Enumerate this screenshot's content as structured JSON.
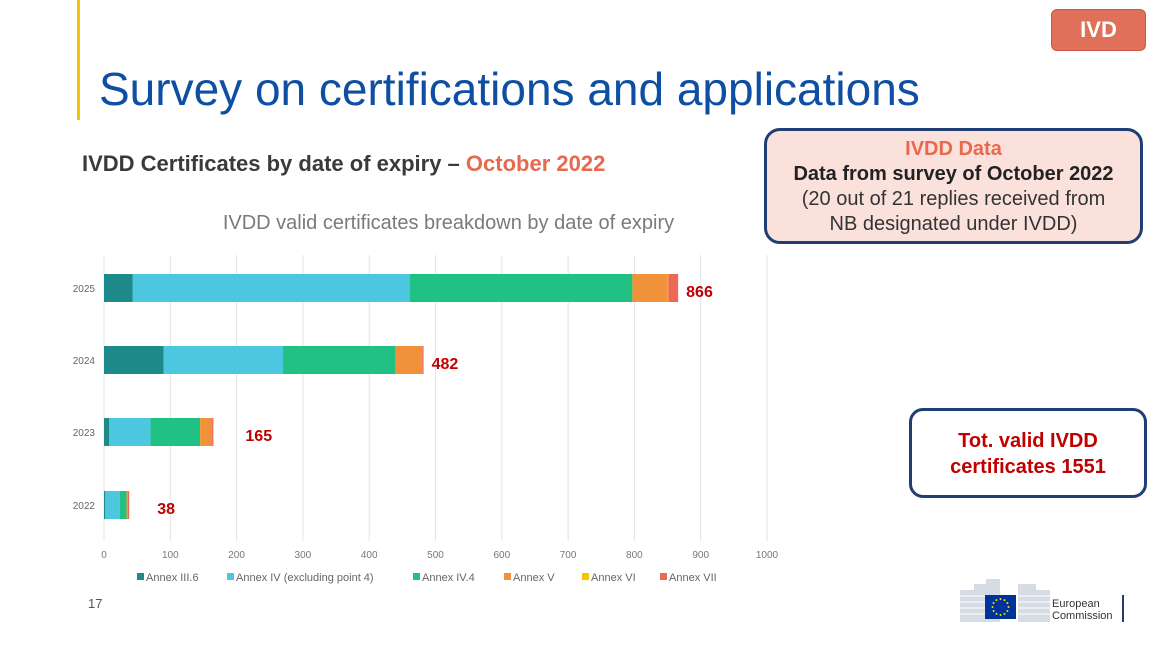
{
  "badge": "IVD",
  "title": "Survey on certifications and applications",
  "subtitle": {
    "main": "IVDD Certificates by date of expiry – ",
    "highlight": "October 2022"
  },
  "infobox": {
    "line1": "IVDD Data",
    "line2": "Data from survey of October 2022",
    "line3": "(20 out of 21 replies received from",
    "line4": "NB designated under IVDD)"
  },
  "totbox": {
    "line1": "Tot. valid IVDD",
    "line2": "certificates 1551"
  },
  "page_number": "17",
  "logo": {
    "line1": "European",
    "line2": "Commission"
  },
  "chart_data": {
    "type": "bar",
    "orientation": "horizontal",
    "stacked": true,
    "title": "IVDD valid certificates breakdown by date of expiry",
    "categories": [
      "2025",
      "2024",
      "2023",
      "2022"
    ],
    "xlim": [
      0,
      1000
    ],
    "xticks": [
      "0",
      "100",
      "200",
      "300",
      "400",
      "500",
      "600",
      "700",
      "800",
      "900",
      "1000"
    ],
    "grid": true,
    "legend_position": "bottom",
    "series": [
      {
        "name": "Annex III.6",
        "color": "#1e8a8a",
        "values": [
          43,
          90,
          8,
          2
        ]
      },
      {
        "name": "Annex IV (excluding point 4)",
        "color": "#4dc6e0",
        "values": [
          418,
          180,
          62,
          22
        ]
      },
      {
        "name": "Annex IV.4",
        "color": "#21c184",
        "values": [
          336,
          170,
          75,
          10
        ]
      },
      {
        "name": "Annex V",
        "color": "#f0923a",
        "values": [
          53,
          40,
          18,
          2
        ]
      },
      {
        "name": "Annex VI",
        "color": "#f5c400",
        "values": [
          1,
          0,
          0,
          0
        ]
      },
      {
        "name": "Annex VII",
        "color": "#ec6a55",
        "values": [
          15,
          2,
          2,
          2
        ]
      }
    ],
    "totals": [
      "866",
      "482",
      "165",
      "38"
    ],
    "total_label_color": "#c00000"
  }
}
